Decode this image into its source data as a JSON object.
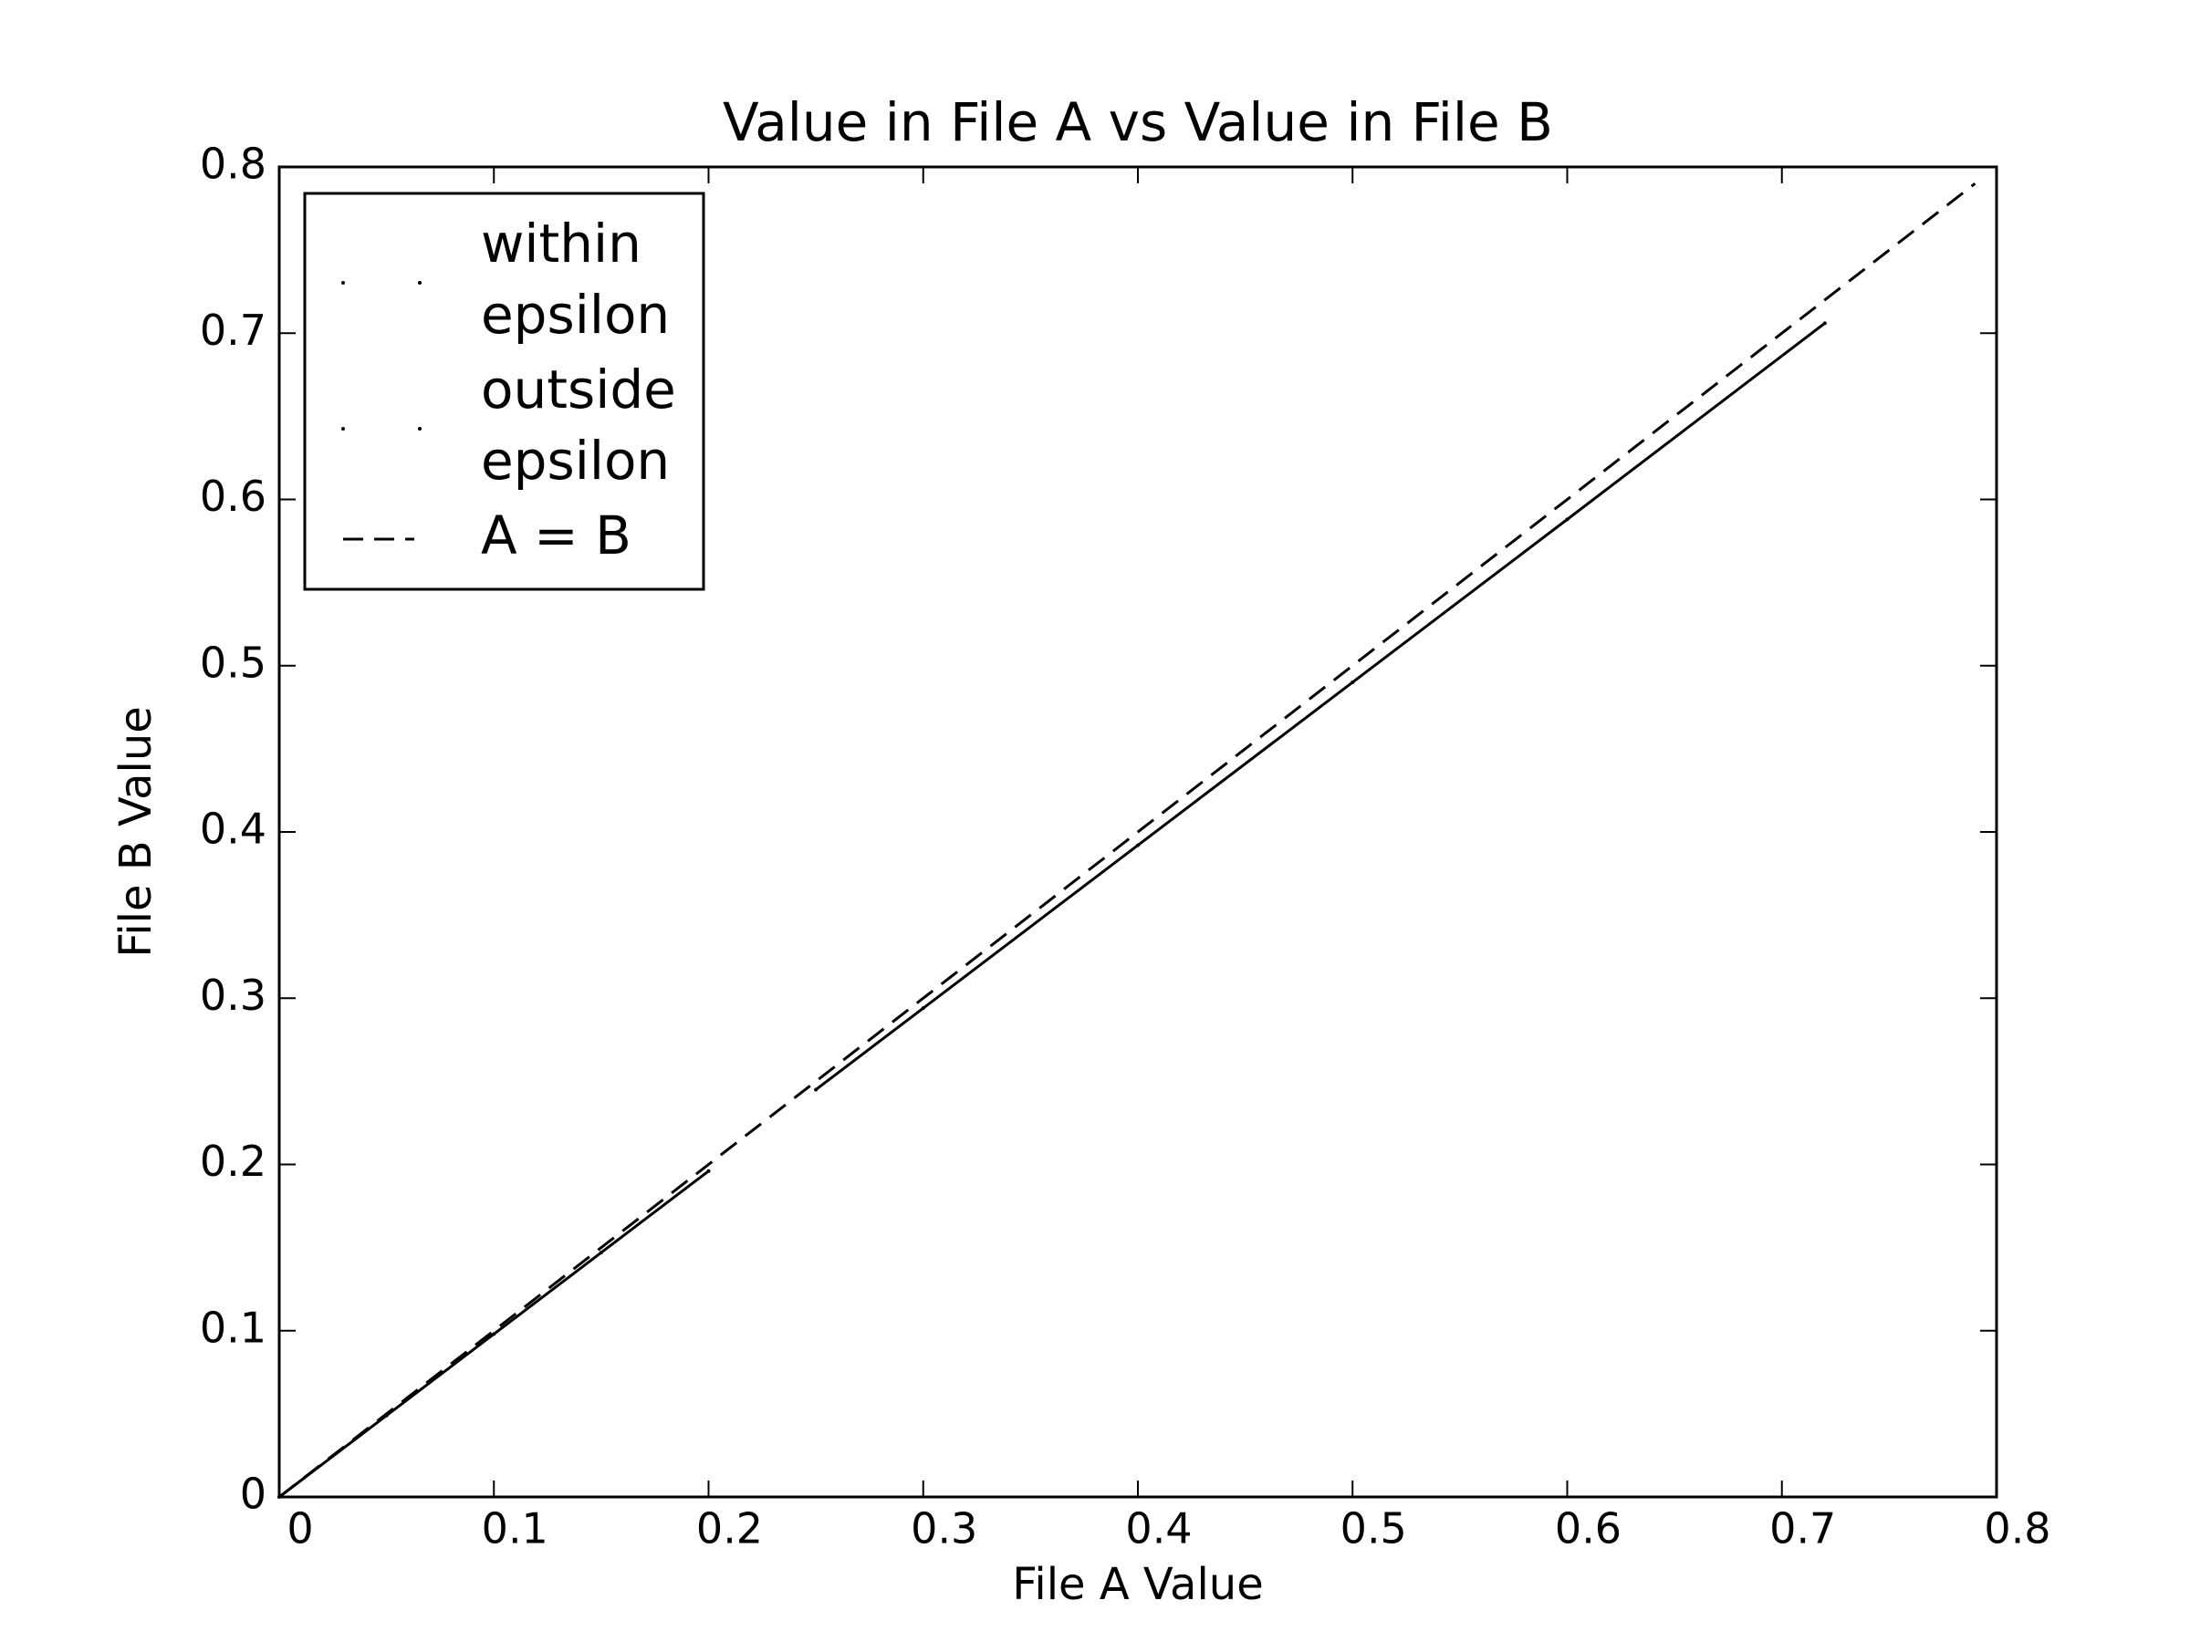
{
  "chart_data": {
    "type": "scatter",
    "title": "Value in File A vs Value in File B",
    "x_label": "File A Value",
    "y_label": "File B Value",
    "xlim": [
      0,
      0.8
    ],
    "ylim": [
      0,
      0.8
    ],
    "xticks": [
      0,
      0.1,
      0.2,
      0.3,
      0.4,
      0.5,
      0.6,
      0.7,
      0.8
    ],
    "yticks": [
      0,
      0.1,
      0.2,
      0.3,
      0.4,
      0.5,
      0.6,
      0.7,
      0.8
    ],
    "legend": "upper left",
    "series": [
      {
        "name": "within epsilon",
        "color": "#000000",
        "x": [
          0,
          0.05,
          0.1,
          0.15,
          0.2
        ],
        "y": [
          0,
          0.049,
          0.098,
          0.147,
          0.196
        ]
      },
      {
        "name": "outside epsilon",
        "color": "#000000",
        "x": [
          0.25,
          0.3,
          0.4,
          0.5,
          0.6,
          0.72
        ],
        "y": [
          0.245,
          0.294,
          0.392,
          0.49,
          0.588,
          0.706
        ]
      },
      {
        "name": "A = B",
        "color": "#000000",
        "style": "dashed",
        "x": [
          0,
          0.79
        ],
        "y": [
          0,
          0.79
        ]
      }
    ]
  }
}
